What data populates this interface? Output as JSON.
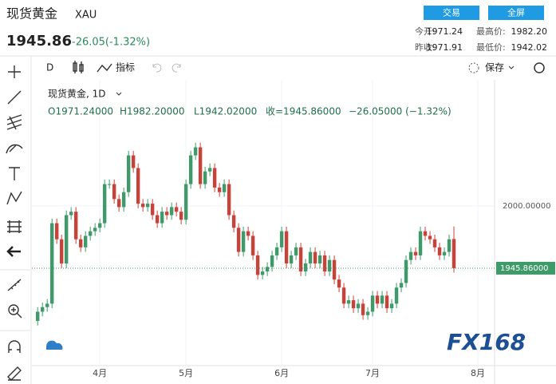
{
  "header": {
    "title": "现货黄金",
    "symbol": "XAU",
    "trade_button": "交易",
    "fullscreen_button": "全屏",
    "price": "1945.86",
    "change": "-26.05(-1.32%)",
    "stats": [
      {
        "label": "今开:",
        "value": "1971.24"
      },
      {
        "label": "最高价:",
        "value": "1982.20"
      },
      {
        "label": "昨收:",
        "value": "1971.91"
      },
      {
        "label": "最低价:",
        "value": "1942.02"
      }
    ]
  },
  "toolbar": {
    "interval": "D",
    "indicators": "指标",
    "save": "保存"
  },
  "chart_data": {
    "type": "candlestick",
    "title": "现货黄金, 1D",
    "ohlc_legend": [
      "O1971.24000",
      "H1982.20000",
      "L1942.02000",
      "收=1945.86000",
      "−26.05000 (−1.32%)"
    ],
    "open": [
      1900,
      1908,
      1912,
      1915,
      1985,
      1971,
      1950,
      1992,
      1995,
      1971,
      1964,
      1974,
      1978,
      1981,
      1985,
      2019,
      2019,
      2006,
      1999,
      2012,
      2044,
      2033,
      2002,
      1999,
      2002,
      1992,
      1985,
      1995,
      1992,
      1999,
      1995,
      1988,
      2019,
      2044,
      2051,
      2019,
      2030,
      2033,
      2016,
      2012,
      2019,
      1992,
      1981,
      1960,
      1978,
      1974,
      1957,
      1940,
      1943,
      1947,
      1957,
      1964,
      1978,
      1950,
      1957,
      1964,
      1943,
      1950,
      1960,
      1950,
      1957,
      1943,
      1953,
      1936,
      1929,
      1915,
      1918,
      1911,
      1915,
      1905,
      1908,
      1922,
      1915,
      1922,
      1911,
      1915,
      1929,
      1933,
      1953,
      1960,
      1957,
      1978,
      1974,
      1971,
      1964,
      1957,
      1960,
      1971.24
    ],
    "high": [
      1912,
      1916,
      1919,
      1989,
      1989,
      1975,
      1996,
      1999,
      1999,
      1975,
      1978,
      1982,
      1985,
      1989,
      2023,
      2023,
      2023,
      2010,
      2016,
      2048,
      2048,
      2037,
      2006,
      2006,
      2006,
      1996,
      1999,
      1999,
      2003,
      2003,
      1999,
      2023,
      2048,
      2055,
      2055,
      2034,
      2037,
      2037,
      2020,
      2023,
      2023,
      1996,
      1985,
      1982,
      1982,
      1978,
      1961,
      1947,
      1951,
      1961,
      1968,
      1982,
      1982,
      1961,
      1968,
      1968,
      1954,
      1964,
      1964,
      1961,
      1961,
      1957,
      1957,
      1940,
      1933,
      1922,
      1922,
      1919,
      1919,
      1912,
      1926,
      1926,
      1926,
      1926,
      1919,
      1933,
      1937,
      1957,
      1964,
      1964,
      1982,
      1982,
      1978,
      1975,
      1968,
      1964,
      1975,
      1982.2
    ],
    "low": [
      1896,
      1904,
      1908,
      1911,
      1967,
      1946,
      1946,
      1988,
      1967,
      1960,
      1960,
      1970,
      1974,
      1977,
      1981,
      2015,
      2002,
      1995,
      1995,
      2008,
      2029,
      1998,
      1995,
      1995,
      1988,
      1981,
      1981,
      1988,
      1988,
      1991,
      1984,
      1984,
      2015,
      2040,
      2015,
      2015,
      2026,
      2012,
      2008,
      2008,
      1988,
      1977,
      1956,
      1956,
      1970,
      1953,
      1936,
      1936,
      1939,
      1943,
      1953,
      1960,
      1946,
      1946,
      1953,
      1939,
      1939,
      1946,
      1946,
      1946,
      1939,
      1939,
      1932,
      1925,
      1911,
      1911,
      1907,
      1907,
      1901,
      1901,
      1904,
      1911,
      1911,
      1907,
      1907,
      1911,
      1925,
      1929,
      1949,
      1953,
      1953,
      1970,
      1967,
      1960,
      1953,
      1953,
      1956,
      1942.02
    ],
    "close": [
      1908,
      1912,
      1915,
      1985,
      1971,
      1950,
      1992,
      1995,
      1971,
      1964,
      1974,
      1978,
      1981,
      1985,
      2019,
      2019,
      2006,
      1999,
      2012,
      2044,
      2033,
      2002,
      1999,
      2002,
      1992,
      1985,
      1995,
      1992,
      1999,
      1995,
      1988,
      2019,
      2044,
      2051,
      2019,
      2030,
      2033,
      2016,
      2012,
      2019,
      1992,
      1981,
      1960,
      1978,
      1974,
      1957,
      1940,
      1943,
      1947,
      1957,
      1964,
      1978,
      1950,
      1957,
      1964,
      1943,
      1950,
      1960,
      1950,
      1957,
      1943,
      1953,
      1936,
      1929,
      1915,
      1918,
      1911,
      1915,
      1905,
      1908,
      1922,
      1915,
      1922,
      1911,
      1915,
      1929,
      1933,
      1953,
      1960,
      1957,
      1978,
      1974,
      1971,
      1964,
      1957,
      1960,
      1971,
      1945.86
    ],
    "up_color": "#3f9a6a",
    "down_color": "#c9423a",
    "xlim": [
      -1.2,
      95.5
    ],
    "xticks": [
      {
        "value": 13,
        "label": "4月"
      },
      {
        "value": 31,
        "label": "5月"
      },
      {
        "value": 51,
        "label": "6月"
      },
      {
        "value": 70,
        "label": "7月"
      },
      {
        "value": 92,
        "label": "8月"
      }
    ],
    "ylim": [
      1861.1,
      2109.7
    ],
    "yticks": [
      {
        "value": 2000,
        "label": "2000.00000"
      }
    ],
    "last_price": {
      "value": 1945.86,
      "label": "1945.86000"
    },
    "grid": true
  },
  "watermark": "FX168"
}
